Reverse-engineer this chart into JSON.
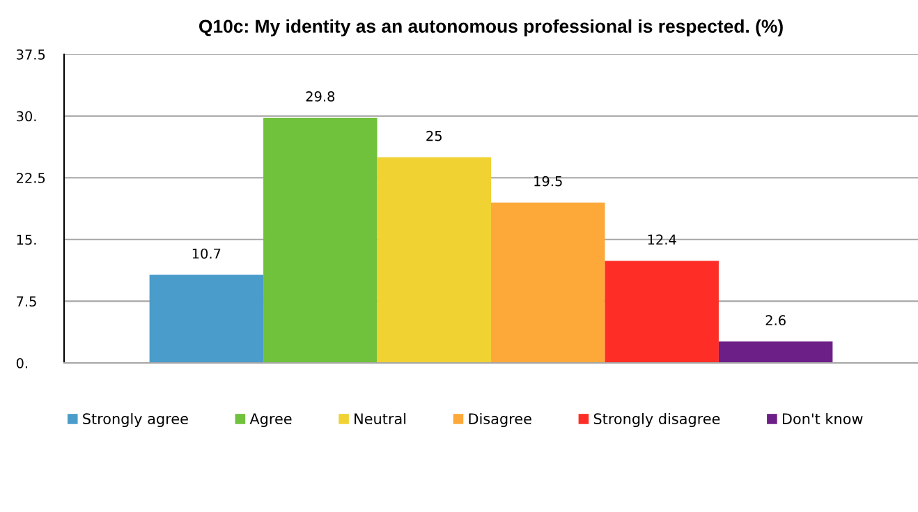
{
  "chart_data": {
    "type": "bar",
    "title": "Q10c: My identity as an autonomous professional is respected. (%)",
    "categories": [
      null
    ],
    "series": [
      {
        "name": "Strongly agree",
        "color": "#4a9ccb",
        "values": [
          10.7
        ]
      },
      {
        "name": "Agree",
        "color": "#70c13b",
        "values": [
          29.8
        ]
      },
      {
        "name": "Neutral",
        "color": "#f0d232",
        "values": [
          25
        ]
      },
      {
        "name": "Disagree",
        "color": "#fda93a",
        "values": [
          19.5
        ]
      },
      {
        "name": "Strongly disagree",
        "color": "#fe2e27",
        "values": [
          12.4
        ]
      },
      {
        "name": "Don't know",
        "color": "#6c1f86",
        "values": [
          2.6
        ]
      }
    ],
    "ylim": [
      0,
      37.5
    ],
    "yticks": [
      {
        "value": 0,
        "label": "0."
      },
      {
        "value": 7.5,
        "label": "7.5"
      },
      {
        "value": 15,
        "label": "15."
      },
      {
        "value": 22.5,
        "label": "22.5"
      },
      {
        "value": 30,
        "label": "30."
      },
      {
        "value": 37.5,
        "label": "37.5"
      }
    ],
    "grid": "y",
    "legend": "bottom",
    "data_labels": true
  }
}
